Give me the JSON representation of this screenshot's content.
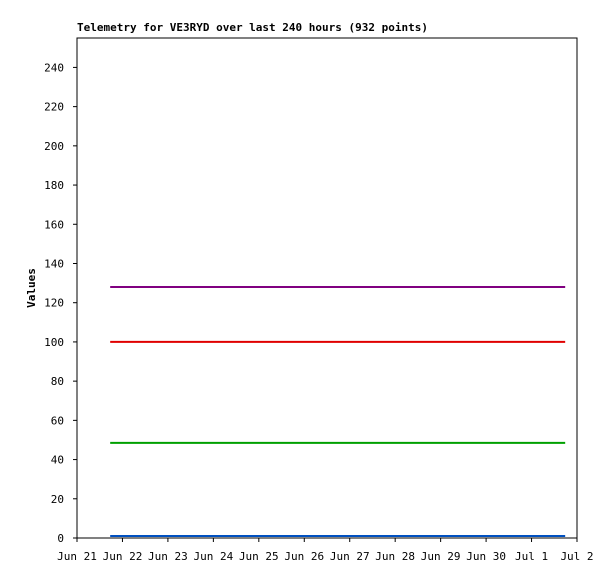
{
  "chart_data": {
    "type": "line",
    "title": "Telemetry for VE3RYD over last 240 hours (932 points)",
    "y_label": "Values",
    "xlim": [
      0,
      11
    ],
    "xticks": [
      {
        "value": 0,
        "label": "Jun 21"
      },
      {
        "value": 1,
        "label": "Jun 22"
      },
      {
        "value": 2,
        "label": "Jun 23"
      },
      {
        "value": 3,
        "label": "Jun 24"
      },
      {
        "value": 4,
        "label": "Jun 25"
      },
      {
        "value": 5,
        "label": "Jun 26"
      },
      {
        "value": 6,
        "label": "Jun 27"
      },
      {
        "value": 7,
        "label": "Jun 28"
      },
      {
        "value": 8,
        "label": "Jun 29"
      },
      {
        "value": 9,
        "label": "Jun 30"
      },
      {
        "value": 10,
        "label": "Jul 1"
      },
      {
        "value": 11,
        "label": "Jul 2"
      }
    ],
    "ylim": [
      0,
      255
    ],
    "yticks": [
      0,
      20,
      40,
      60,
      80,
      100,
      120,
      140,
      160,
      180,
      200,
      220,
      240
    ],
    "x": [
      0.73,
      10.74
    ],
    "series": [
      {
        "color": "#800080",
        "values": [
          128,
          128
        ]
      },
      {
        "color": "#e00000",
        "values": [
          100,
          100
        ]
      },
      {
        "color": "#00a000",
        "values": [
          48.5,
          48.5
        ]
      },
      {
        "color": "#0050c0",
        "values": [
          1,
          1
        ]
      }
    ]
  }
}
